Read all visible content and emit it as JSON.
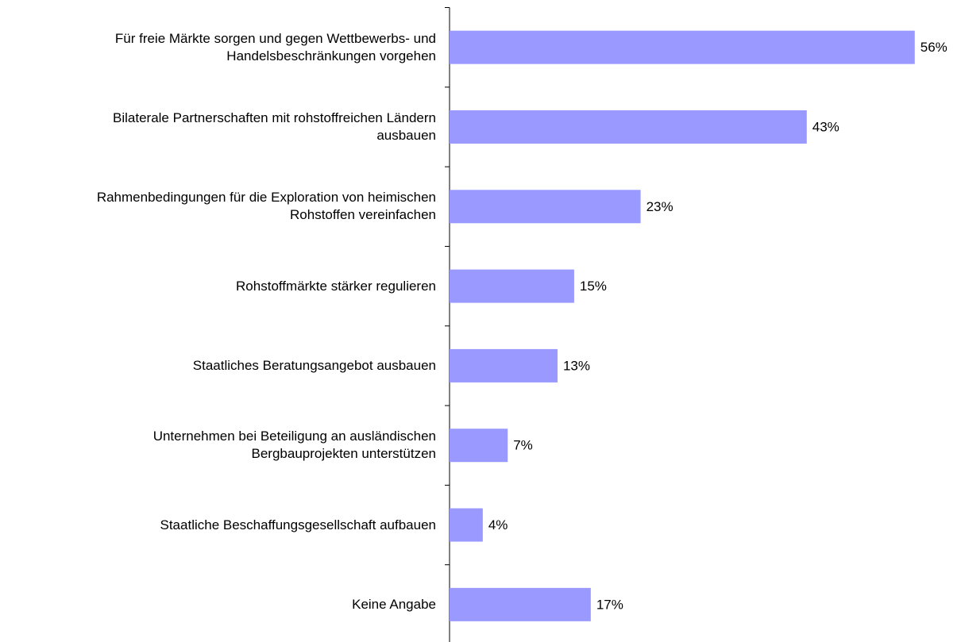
{
  "chart_data": {
    "type": "bar",
    "orientation": "horizontal",
    "categories": [
      "Für freie Märkte sorgen und gegen Wettbewerbs- und\nHandelsbeschränkungen vorgehen",
      "Bilaterale Partnerschaften mit rohstoffreichen Ländern\nausbauen",
      "Rahmenbedingungen für die Exploration von heimischen\nRohstoffen vereinfachen",
      "Rohstoffmärkte stärker regulieren",
      "Staatliches Beratungsangebot ausbauen",
      "Unternehmen bei Beteiligung an ausländischen\nBergbauprojekten unterstützen",
      "Staatliche Beschaffungsgesellschaft aufbauen",
      "Keine Angabe"
    ],
    "values": [
      56,
      43,
      23,
      15,
      13,
      7,
      4,
      17
    ],
    "value_labels": [
      "56%",
      "43%",
      "23%",
      "15%",
      "13%",
      "7%",
      "4%",
      "17%"
    ],
    "color": "#9999ff"
  }
}
